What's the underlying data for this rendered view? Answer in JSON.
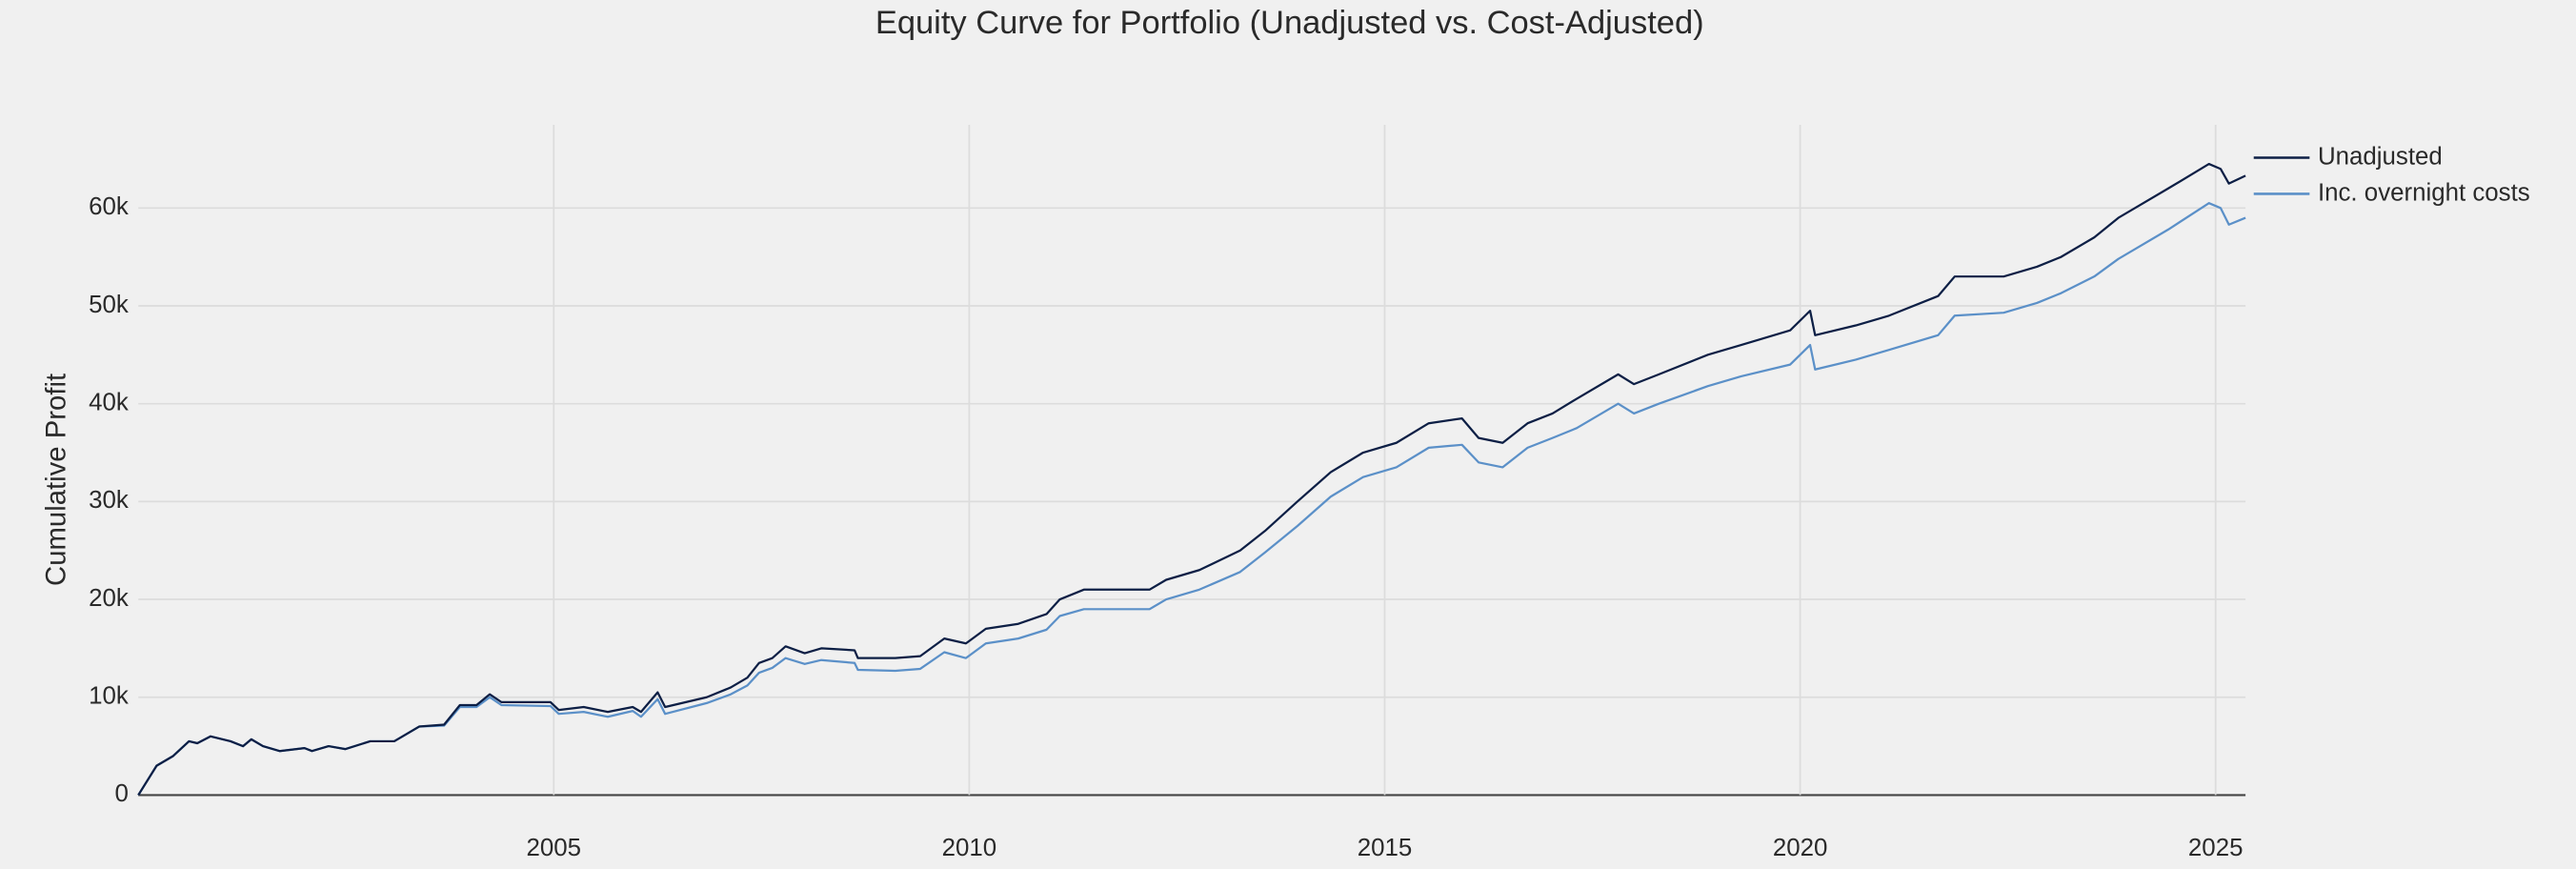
{
  "chart_data": {
    "type": "line",
    "title": "Equity Curve for Portfolio (Unadjusted vs. Cost-Adjusted)",
    "ylabel": "Cumulative Profit",
    "x": [
      2000.0,
      2000.22,
      2000.42,
      2000.61,
      2000.71,
      2000.87,
      2001.11,
      2001.26,
      2001.36,
      2001.5,
      2001.7,
      2002.0,
      2002.09,
      2002.29,
      2002.49,
      2002.79,
      2003.08,
      2003.18,
      2003.38,
      2003.68,
      2003.87,
      2004.07,
      2004.23,
      2004.37,
      2004.96,
      2005.06,
      2005.36,
      2005.65,
      2005.95,
      2006.05,
      2006.25,
      2006.34,
      2006.84,
      2007.13,
      2007.33,
      2007.47,
      2007.63,
      2007.79,
      2008.02,
      2008.22,
      2008.62,
      2008.66,
      2009.11,
      2009.41,
      2009.7,
      2009.96,
      2010.2,
      2010.59,
      2010.93,
      2011.09,
      2011.38,
      2012.17,
      2012.37,
      2012.77,
      2013.26,
      2013.56,
      2013.95,
      2014.35,
      2014.74,
      2015.14,
      2015.53,
      2015.93,
      2016.13,
      2016.42,
      2016.72,
      2017.02,
      2017.31,
      2017.81,
      2018.0,
      2018.3,
      2018.89,
      2019.29,
      2019.88,
      2020.12,
      2020.18,
      2020.67,
      2021.07,
      2021.66,
      2021.86,
      2022.45,
      2022.85,
      2023.14,
      2023.54,
      2023.83,
      2024.03,
      2024.43,
      2024.92,
      2025.06,
      2025.16,
      2025.36
    ],
    "series": [
      {
        "name": "Unadjusted",
        "color": "#0d1f45",
        "values": [
          0,
          3000,
          4000,
          5500,
          5300,
          6000,
          5500,
          5000,
          5700,
          5000,
          4500,
          4800,
          4500,
          5000,
          4700,
          5500,
          5500,
          6000,
          7000,
          7200,
          9200,
          9200,
          10300,
          9500,
          9500,
          8700,
          9000,
          8500,
          9000,
          8500,
          10500,
          9000,
          10000,
          11000,
          12000,
          13500,
          14000,
          15200,
          14500,
          15000,
          14800,
          14000,
          14000,
          14200,
          16000,
          15500,
          17000,
          17500,
          18500,
          20000,
          21000,
          21000,
          22000,
          23000,
          25000,
          27000,
          30000,
          33000,
          35000,
          36000,
          38000,
          38500,
          36500,
          36000,
          38000,
          39000,
          40500,
          43000,
          42000,
          43000,
          45000,
          46000,
          47500,
          49500,
          47000,
          48000,
          49000,
          51000,
          53000,
          53000,
          54000,
          55000,
          57000,
          59000,
          60000,
          62000,
          64500,
          64000,
          62500,
          63300
        ]
      },
      {
        "name": "Inc. overnight costs",
        "color": "#5b90c8",
        "values": [
          0,
          3000,
          4000,
          5500,
          5300,
          6000,
          5500,
          5000,
          5700,
          5000,
          4500,
          4800,
          4500,
          5000,
          4700,
          5500,
          5500,
          6000,
          7000,
          7100,
          9000,
          9000,
          10000,
          9200,
          9100,
          8300,
          8500,
          8000,
          8600,
          8000,
          9800,
          8300,
          9400,
          10300,
          11200,
          12500,
          13000,
          14000,
          13400,
          13800,
          13500,
          12800,
          12700,
          12900,
          14600,
          14000,
          15500,
          16000,
          16900,
          18300,
          19000,
          19000,
          20000,
          21000,
          22800,
          24800,
          27500,
          30500,
          32500,
          33500,
          35500,
          35800,
          34000,
          33500,
          35500,
          36500,
          37500,
          40000,
          39000,
          40000,
          41800,
          42800,
          44000,
          46000,
          43500,
          44500,
          45500,
          47000,
          49000,
          49300,
          50300,
          51300,
          53000,
          54800,
          55800,
          57800,
          60500,
          60000,
          58300,
          59000
        ]
      }
    ],
    "xlim": [
      2000,
      2025.36
    ],
    "xticks": [
      2005,
      2010,
      2015,
      2020,
      2025
    ],
    "ylim": [
      0,
      68500
    ],
    "yticks": [
      0,
      {
        "value": 10000,
        "label": "10k"
      },
      {
        "value": 20000,
        "label": "20k"
      },
      {
        "value": 30000,
        "label": "30k"
      },
      {
        "value": 40000,
        "label": "40k"
      },
      {
        "value": 50000,
        "label": "50k"
      },
      {
        "value": 60000,
        "label": "60k"
      }
    ],
    "grid": true,
    "legend": "outside-top-right"
  }
}
